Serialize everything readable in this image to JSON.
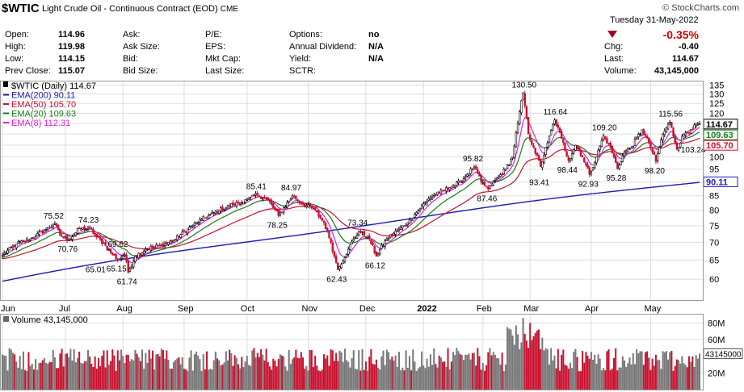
{
  "header": {
    "symbol": "$WTIC",
    "name": "Light Crude Oil - Continuous Contract (EOD)",
    "exchange": "CME",
    "logo": "© StockCharts.com",
    "date": "Tuesday 31-May-2022",
    "change_pct": "-0.35%",
    "fields": [
      {
        "label": "Open:",
        "value": "114.96"
      },
      {
        "label": "High:",
        "value": "119.98"
      },
      {
        "label": "Low:",
        "value": "114.15"
      },
      {
        "label": "Prev Close:",
        "value": "115.07"
      },
      {
        "label": "Ask:",
        "value": ""
      },
      {
        "label": "Ask Size:",
        "value": ""
      },
      {
        "label": "Bid:",
        "value": ""
      },
      {
        "label": "Bid Size:",
        "value": ""
      },
      {
        "label": "P/E:",
        "value": ""
      },
      {
        "label": "EPS:",
        "value": ""
      },
      {
        "label": "Mkt Cap:",
        "value": ""
      },
      {
        "label": "Last Size:",
        "value": ""
      },
      {
        "label": "Options:",
        "value": "no"
      },
      {
        "label": "Annual Dividend:",
        "value": "N/A"
      },
      {
        "label": "Yield:",
        "value": "N/A"
      },
      {
        "label": "SCTR:",
        "value": ""
      },
      {
        "label": "Chg:",
        "value": "-0.40"
      },
      {
        "label": "Last:",
        "value": "114.67"
      },
      {
        "label": "Volume:",
        "value": "43,145,000"
      }
    ]
  },
  "colors": {
    "ema200": "#1b1bb4",
    "ema50": "#c8102e",
    "ema20": "#1a7a1a",
    "ema8": "#e01ee0",
    "up": "#555555",
    "down": "#c8102e",
    "grid": "#dddddd"
  },
  "chart_data": [
    {
      "type": "candlestick",
      "legend": [
        {
          "label": "$WTIC (Daily) 114.67",
          "color": "#000000"
        },
        {
          "label": "EMA(200) 90.11",
          "color": "#1b1bb4"
        },
        {
          "label": "EMA(50) 105.70",
          "color": "#c8102e"
        },
        {
          "label": "EMA(20) 109.63",
          "color": "#1a7a1a"
        },
        {
          "label": "EMA(8) 112.31",
          "color": "#e01ee0"
        }
      ],
      "yaxis_scale": "log",
      "ylim": [
        55,
        137
      ],
      "yticks": [
        60,
        65,
        70,
        75,
        80,
        85,
        90,
        95,
        100,
        105,
        110,
        115,
        120,
        125,
        130,
        135
      ],
      "xticks": [
        "Jun",
        "Jul",
        "Aug",
        "Sep",
        "Oct",
        "Nov",
        "Dec",
        "2022",
        "Feb",
        "Mar",
        "Apr",
        "May"
      ],
      "right_labels": [
        {
          "value": 114.67,
          "text": "114.67",
          "color": "#000000"
        },
        {
          "value": 109.63,
          "text": "109.63",
          "color": "#1a7a1a"
        },
        {
          "value": 105.7,
          "text": "105.70",
          "color": "#c8102e"
        },
        {
          "value": 90.11,
          "text": "90.11",
          "color": "#1b1bb4"
        }
      ],
      "anchors": [
        [
          0,
          66.32
        ],
        [
          8,
          69.5
        ],
        [
          16,
          71.0
        ],
        [
          24,
          73.5
        ],
        [
          30,
          75.52
        ],
        [
          33,
          72.0
        ],
        [
          38,
          70.76
        ],
        [
          44,
          74.0
        ],
        [
          50,
          74.23
        ],
        [
          54,
          71.5
        ],
        [
          58,
          69.62
        ],
        [
          62,
          67.0
        ],
        [
          66,
          65.15
        ],
        [
          70,
          66.5
        ],
        [
          72,
          61.74
        ],
        [
          76,
          66.0
        ],
        [
          82,
          68.0
        ],
        [
          90,
          69.0
        ],
        [
          98,
          70.5
        ],
        [
          106,
          74.0
        ],
        [
          114,
          77.0
        ],
        [
          124,
          80.0
        ],
        [
          132,
          82.0
        ],
        [
          140,
          83.5
        ],
        [
          146,
          85.41
        ],
        [
          152,
          83.5
        ],
        [
          158,
          78.25
        ],
        [
          166,
          84.97
        ],
        [
          172,
          82.0
        ],
        [
          178,
          80.5
        ],
        [
          184,
          76.0
        ],
        [
          188,
          70.0
        ],
        [
          190,
          66.0
        ],
        [
          192,
          62.43
        ],
        [
          198,
          68.0
        ],
        [
          204,
          73.34
        ],
        [
          210,
          71.0
        ],
        [
          214,
          66.12
        ],
        [
          220,
          71.0
        ],
        [
          226,
          73.5
        ],
        [
          232,
          76.0
        ],
        [
          238,
          80.0
        ],
        [
          244,
          84.0
        ],
        [
          250,
          86.0
        ],
        [
          256,
          88.0
        ],
        [
          262,
          90.0
        ],
        [
          266,
          93.0
        ],
        [
          270,
          95.82
        ],
        [
          274,
          90.0
        ],
        [
          278,
          87.46
        ],
        [
          284,
          92.0
        ],
        [
          288,
          95.0
        ],
        [
          292,
          100.0
        ],
        [
          295,
          115.0
        ],
        [
          298,
          130.5
        ],
        [
          301,
          110.0
        ],
        [
          304,
          104.0
        ],
        [
          308,
          96.0
        ],
        [
          312,
          106.0
        ],
        [
          316,
          116.64
        ],
        [
          320,
          108.0
        ],
        [
          324,
          98.44
        ],
        [
          328,
          105.0
        ],
        [
          332,
          100.0
        ],
        [
          336,
          92.93
        ],
        [
          340,
          100.0
        ],
        [
          344,
          109.2
        ],
        [
          348,
          104.0
        ],
        [
          352,
          95.28
        ],
        [
          356,
          102.0
        ],
        [
          360,
          104.0
        ],
        [
          366,
          112.0
        ],
        [
          370,
          106.0
        ],
        [
          374,
          98.2
        ],
        [
          378,
          110.0
        ],
        [
          382,
          115.56
        ],
        [
          386,
          103.24
        ],
        [
          390,
          110.0
        ],
        [
          394,
          112.0
        ],
        [
          398,
          114.67
        ]
      ],
      "annotations": [
        {
          "x": 30,
          "value": 75.52,
          "text": "75.52",
          "pos": "above"
        },
        {
          "x": 38,
          "value": 70.76,
          "text": "70.76",
          "pos": "below"
        },
        {
          "x": 50,
          "value": 74.23,
          "text": "74.23",
          "pos": "above"
        },
        {
          "x": 58,
          "value": 69.62,
          "text": "69.62",
          "pos": "right"
        },
        {
          "x": 54,
          "value": 65.01,
          "text": "65.01",
          "pos": "below"
        },
        {
          "x": 66,
          "value": 65.15,
          "text": "65.15",
          "pos": "below"
        },
        {
          "x": 72,
          "value": 61.74,
          "text": "61.74",
          "pos": "below"
        },
        {
          "x": 146,
          "value": 85.41,
          "text": "85.41",
          "pos": "above"
        },
        {
          "x": 166,
          "value": 84.97,
          "text": "84.97",
          "pos": "above"
        },
        {
          "x": 158,
          "value": 78.25,
          "text": "78.25",
          "pos": "below"
        },
        {
          "x": 204,
          "value": 73.34,
          "text": "73.34",
          "pos": "above"
        },
        {
          "x": 192,
          "value": 62.43,
          "text": "62.43",
          "pos": "below"
        },
        {
          "x": 214,
          "value": 66.12,
          "text": "66.12",
          "pos": "below"
        },
        {
          "x": 270,
          "value": 95.82,
          "text": "95.82",
          "pos": "above"
        },
        {
          "x": 278,
          "value": 87.46,
          "text": "87.46",
          "pos": "below"
        },
        {
          "x": 298,
          "value": 130.5,
          "text": "130.50",
          "pos": "above"
        },
        {
          "x": 316,
          "value": 116.64,
          "text": "116.64",
          "pos": "above"
        },
        {
          "x": 308,
          "value": 93.41,
          "text": "93.41",
          "pos": "below"
        },
        {
          "x": 324,
          "value": 98.44,
          "text": "98.44",
          "pos": "below"
        },
        {
          "x": 336,
          "value": 92.93,
          "text": "92.93",
          "pos": "below"
        },
        {
          "x": 344,
          "value": 109.2,
          "text": "109.20",
          "pos": "above"
        },
        {
          "x": 352,
          "value": 95.28,
          "text": "95.28",
          "pos": "below"
        },
        {
          "x": 382,
          "value": 115.56,
          "text": "115.56",
          "pos": "above"
        },
        {
          "x": 374,
          "value": 98.2,
          "text": "98.20",
          "pos": "below"
        },
        {
          "x": 386,
          "value": 103.24,
          "text": "103.24",
          "pos": "right"
        }
      ]
    },
    {
      "type": "bar",
      "legend": [
        {
          "label": "Volume 43,145,000",
          "color": "#000000"
        }
      ],
      "ylim": [
        0,
        90000000
      ],
      "ytick_labels": [
        {
          "value": 80000000,
          "text": "80M"
        },
        {
          "value": 60000000,
          "text": "60M"
        },
        {
          "value": 20000000,
          "text": "20M"
        }
      ],
      "last_label": {
        "value": 43145000,
        "text": "43145000"
      }
    }
  ]
}
